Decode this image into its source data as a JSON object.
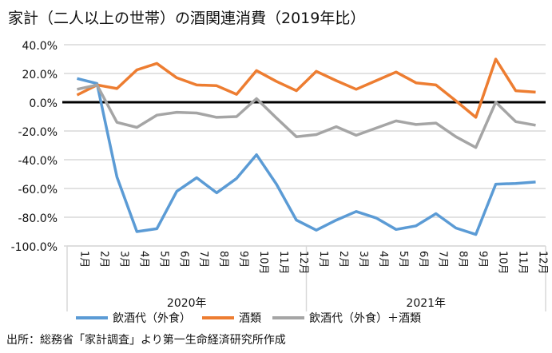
{
  "chart_data": {
    "type": "line",
    "title": "家計（二人以上の世帯）の酒関連消費（2019年比）",
    "categories": [
      "1月",
      "2月",
      "3月",
      "4月",
      "5月",
      "6月",
      "7月",
      "8月",
      "9月",
      "10月",
      "11月",
      "12月",
      "1月",
      "2月",
      "3月",
      "4月",
      "5月",
      "6月",
      "7月",
      "8月",
      "9月",
      "10月",
      "11月",
      "12月"
    ],
    "groups": [
      {
        "label": "2020年",
        "count": 12
      },
      {
        "label": "2021年",
        "count": 12
      }
    ],
    "y_ticks": [
      "40.0%",
      "20.0%",
      "0.0%",
      "-20.0%",
      "-40.0%",
      "-60.0%",
      "-80.0%",
      "-100.0%"
    ],
    "ylim": [
      -100,
      40
    ],
    "grid": true,
    "legend_position": "bottom",
    "series": [
      {
        "name": "飲酒代（外食）",
        "color": "#5b9bd5",
        "values": [
          16.5,
          13,
          -52,
          -90,
          -88,
          -62,
          -52.5,
          -63,
          -53,
          -36.5,
          -57,
          -82,
          -89,
          -82,
          -76,
          -80.5,
          -88.5,
          -86,
          -77.5,
          -87.5,
          -92,
          -57,
          -56.5,
          -55.5
        ]
      },
      {
        "name": "酒類",
        "color": "#ed7d31",
        "values": [
          5,
          12,
          9.5,
          22.5,
          27,
          17,
          12,
          11.5,
          5.5,
          22,
          14.5,
          8,
          21.5,
          15,
          9,
          15,
          21,
          13.5,
          12,
          1,
          -10.5,
          30,
          8,
          7
        ]
      },
      {
        "name": "飲酒代（外食）＋酒類",
        "color": "#a5a5a5",
        "values": [
          9,
          12,
          -14,
          -17.5,
          -9,
          -7,
          -7.5,
          -10.5,
          -10,
          2.5,
          -11,
          -24,
          -22.5,
          -17,
          -23,
          -18,
          -13,
          -15.5,
          -14.5,
          -24,
          -31.5,
          0,
          -13.5,
          -16
        ]
      }
    ]
  },
  "source": "出所：総務省「家計調査」より第一生命経済研究所作成"
}
